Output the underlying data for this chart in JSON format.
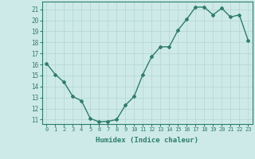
{
  "x": [
    0,
    1,
    2,
    3,
    4,
    5,
    6,
    7,
    8,
    9,
    10,
    11,
    12,
    13,
    14,
    15,
    16,
    17,
    18,
    19,
    20,
    21,
    22,
    23
  ],
  "y": [
    16.1,
    15.1,
    14.4,
    13.1,
    12.7,
    11.1,
    10.8,
    10.85,
    11.0,
    12.3,
    13.1,
    15.1,
    16.7,
    17.6,
    17.6,
    19.1,
    20.1,
    21.2,
    21.2,
    20.5,
    21.1,
    20.3,
    20.5,
    18.2
  ],
  "xlabel": "Humidex (Indice chaleur)",
  "xlim": [
    -0.5,
    23.5
  ],
  "ylim": [
    10.6,
    21.7
  ],
  "yticks": [
    11,
    12,
    13,
    14,
    15,
    16,
    17,
    18,
    19,
    20,
    21
  ],
  "xticks": [
    0,
    1,
    2,
    3,
    4,
    5,
    6,
    7,
    8,
    9,
    10,
    11,
    12,
    13,
    14,
    15,
    16,
    17,
    18,
    19,
    20,
    21,
    22,
    23
  ],
  "xtick_labels": [
    "0",
    "1",
    "2",
    "3",
    "4",
    "5",
    "6",
    "7",
    "8",
    "9",
    "10",
    "11",
    "12",
    "13",
    "14",
    "15",
    "16",
    "17",
    "18",
    "19",
    "20",
    "21",
    "22",
    "23"
  ],
  "line_color": "#2e7d6e",
  "marker": "D",
  "marker_size": 2,
  "bg_color": "#cdeae8",
  "grid_color": "#b8d8d5",
  "tick_color": "#2e7d6e",
  "label_color": "#2e7d6e",
  "line_width": 1.0
}
